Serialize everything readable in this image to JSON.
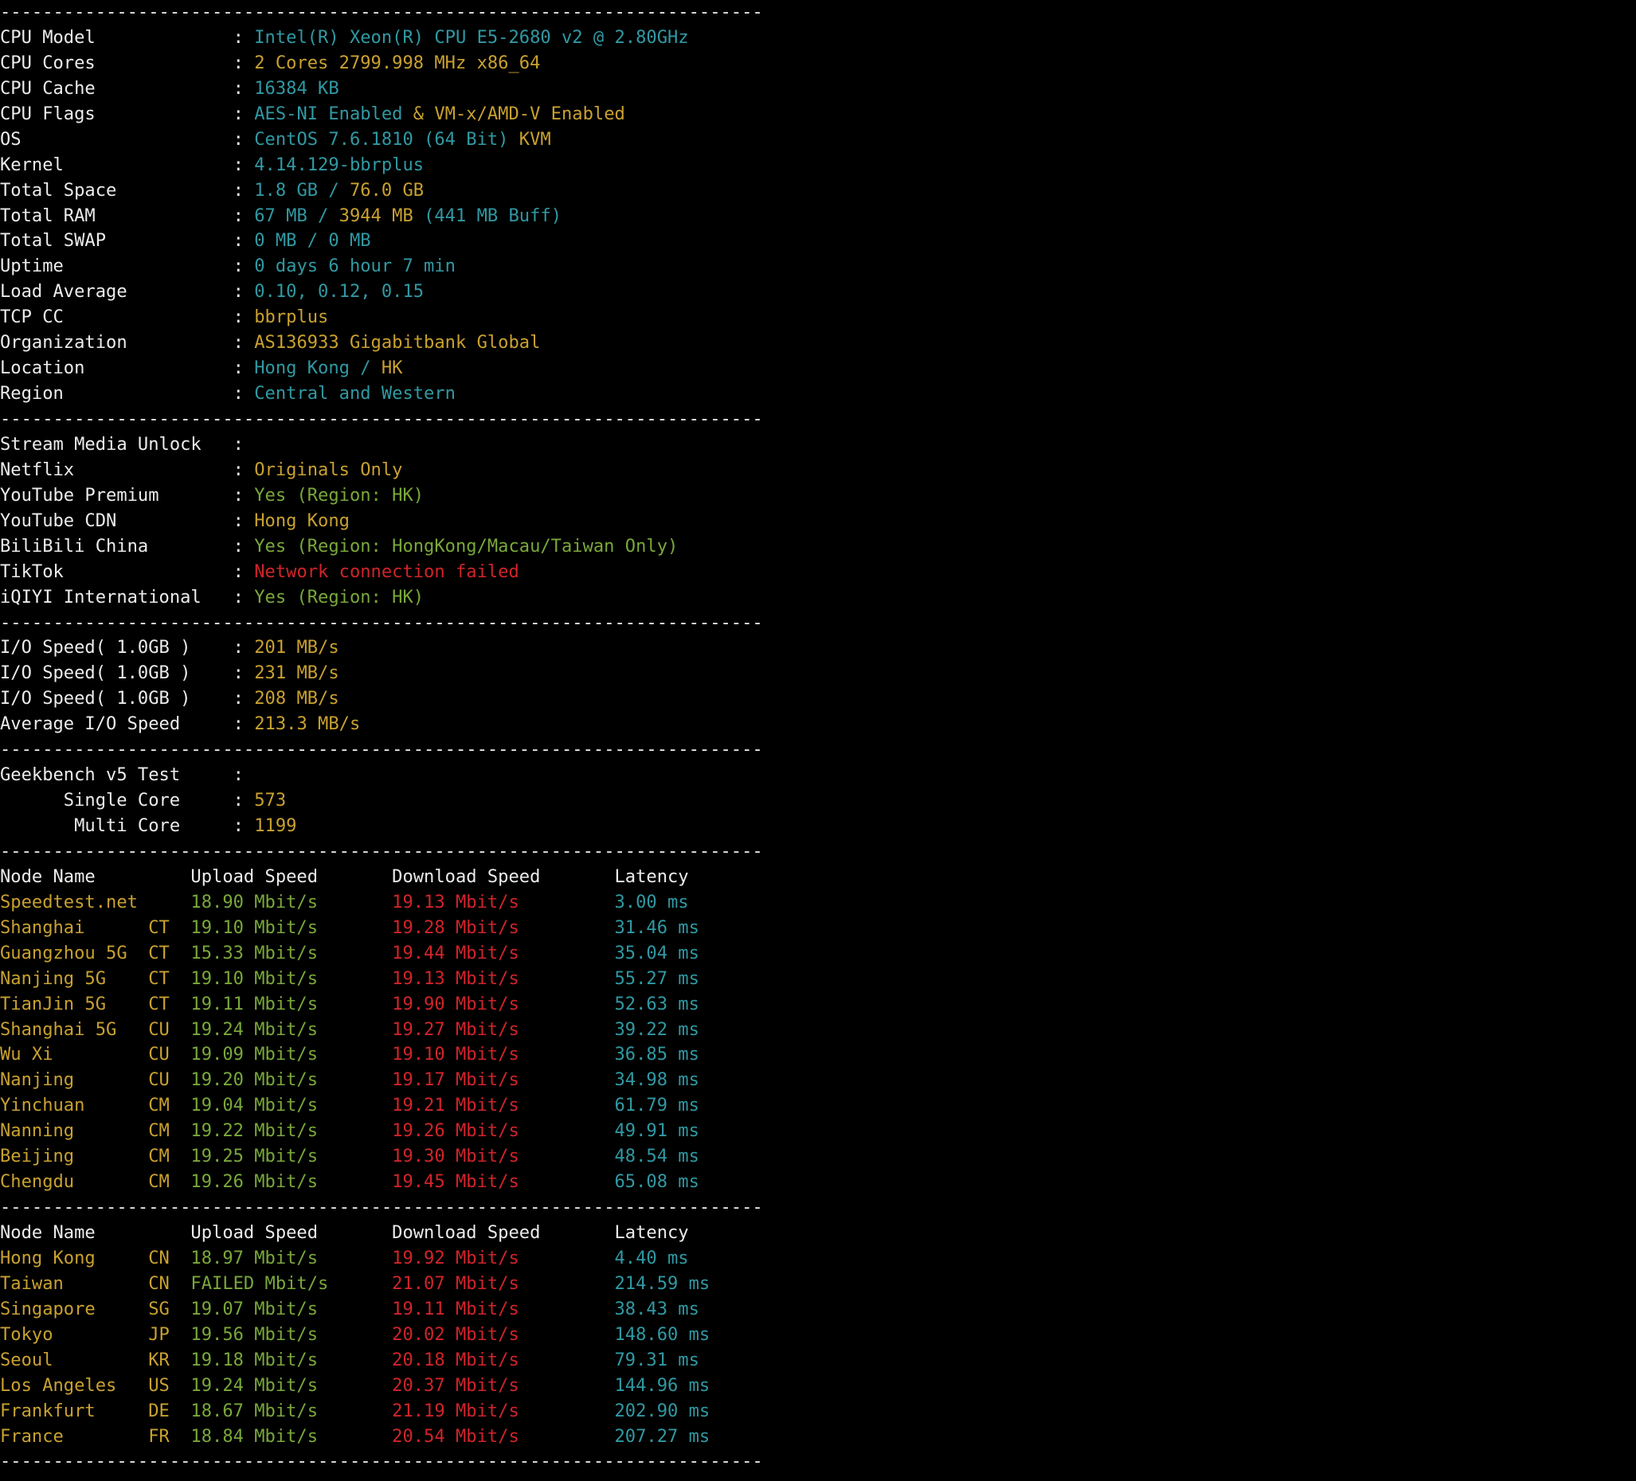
{
  "separator": "------------------------------------------------------------------------",
  "colon": ":",
  "system_info": [
    {
      "key": "CPU Model",
      "value": [
        {
          "text": "Intel(R) Xeon(R) CPU E5-2680 v2 @ 2.80GHz",
          "color": "#3099a3"
        }
      ]
    },
    {
      "key": "CPU Cores",
      "value": [
        {
          "text": "2 Cores 2799.998 MHz x86_64",
          "color": "#c9a130"
        }
      ]
    },
    {
      "key": "CPU Cache",
      "value": [
        {
          "text": "16384 KB",
          "color": "#3099a3"
        }
      ]
    },
    {
      "key": "CPU Flags",
      "value": [
        {
          "text": "AES-NI Enabled",
          "color": "#3099a3"
        },
        {
          "text": "& VM-x/AMD-V Enabled",
          "color": "#c9a130"
        }
      ]
    },
    {
      "key": "OS",
      "value": [
        {
          "text": "CentOS 7.6.1810 (64 Bit)",
          "color": "#3099a3"
        },
        {
          "text": "KVM",
          "color": "#c9a130"
        }
      ]
    },
    {
      "key": "Kernel",
      "value": [
        {
          "text": "4.14.129-bbrplus",
          "color": "#3099a3"
        }
      ]
    },
    {
      "key": "Total Space",
      "value": [
        {
          "text": "1.8 GB /",
          "color": "#3099a3"
        },
        {
          "text": "76.0 GB",
          "color": "#c9a130"
        }
      ]
    },
    {
      "key": "Total RAM",
      "value": [
        {
          "text": "67 MB /",
          "color": "#3099a3"
        },
        {
          "text": "3944 MB",
          "color": "#c9a130"
        },
        {
          "text": "(441 MB Buff)",
          "color": "#3099a3"
        }
      ]
    },
    {
      "key": "Total SWAP",
      "value": [
        {
          "text": "0 MB / 0 MB",
          "color": "#3099a3"
        }
      ]
    },
    {
      "key": "Uptime",
      "value": [
        {
          "text": "0 days 6 hour 7 min",
          "color": "#3099a3"
        }
      ]
    },
    {
      "key": "Load Average",
      "value": [
        {
          "text": "0.10, 0.12, 0.15",
          "color": "#3099a3"
        }
      ]
    },
    {
      "key": "TCP CC",
      "value": [
        {
          "text": "bbrplus",
          "color": "#c9a130"
        }
      ]
    },
    {
      "key": "Organization",
      "value": [
        {
          "text": "AS136933 Gigabitbank Global",
          "color": "#c9a130"
        }
      ]
    },
    {
      "key": "Location",
      "value": [
        {
          "text": "Hong Kong /",
          "color": "#3099a3"
        },
        {
          "text": "HK",
          "color": "#c9a130"
        }
      ]
    },
    {
      "key": "Region",
      "value": [
        {
          "text": "Central and Western",
          "color": "#3099a3"
        }
      ]
    }
  ],
  "stream_media": {
    "title": "Stream Media Unlock",
    "rows": [
      {
        "key": "Netflix",
        "value": [
          {
            "text": "Originals Only",
            "color": "#c9a130"
          }
        ]
      },
      {
        "key": "YouTube Premium",
        "value": [
          {
            "text": "Yes (Region: HK)",
            "color": "#7aa83a"
          }
        ]
      },
      {
        "key": "YouTube CDN",
        "value": [
          {
            "text": "Hong Kong",
            "color": "#c9a130"
          }
        ]
      },
      {
        "key": "BiliBili China",
        "value": [
          {
            "text": "Yes (Region: HongKong/Macau/Taiwan Only)",
            "color": "#7aa83a"
          }
        ]
      },
      {
        "key": "TikTok",
        "value": [
          {
            "text": "Network connection failed",
            "color": "#d0242a"
          }
        ]
      },
      {
        "key": "iQIYI International",
        "value": [
          {
            "text": "Yes (Region: HK)",
            "color": "#7aa83a"
          }
        ]
      }
    ]
  },
  "io": [
    {
      "key": "I/O Speed( 1.0GB )",
      "value": [
        {
          "text": "201 MB/s",
          "color": "#c9a130"
        }
      ]
    },
    {
      "key": "I/O Speed( 1.0GB )",
      "value": [
        {
          "text": "231 MB/s",
          "color": "#c9a130"
        }
      ]
    },
    {
      "key": "I/O Speed( 1.0GB )",
      "value": [
        {
          "text": "208 MB/s",
          "color": "#c9a130"
        }
      ]
    },
    {
      "key": "Average I/O Speed",
      "value": [
        {
          "text": "213.3 MB/s",
          "color": "#c9a130"
        }
      ]
    }
  ],
  "geekbench": {
    "title": "Geekbench v5 Test",
    "rows": [
      {
        "key": "Single Core",
        "value": [
          {
            "text": "573",
            "color": "#c9a130"
          }
        ]
      },
      {
        "key": "Multi Core",
        "value": [
          {
            "text": "1199",
            "color": "#c9a130"
          }
        ]
      }
    ]
  },
  "speed_colors": {
    "header": "#ececec",
    "node": "#c9a130",
    "isp": "#c9a130",
    "upload": "#7aa83a",
    "download": "#d0242a",
    "latency": "#3099a3"
  },
  "speedtests": [
    {
      "header": [
        "Node Name",
        "Upload Speed",
        "Download Speed",
        "Latency"
      ],
      "rows": [
        {
          "node": "Speedtest.net",
          "upload": "18.90 Mbit/s",
          "download": "19.13 Mbit/s",
          "latency": "3.00 ms"
        },
        {
          "node": "Shanghai",
          "isp": "CT",
          "upload": "19.10 Mbit/s",
          "download": "19.28 Mbit/s",
          "latency": "31.46 ms"
        },
        {
          "node": "Guangzhou 5G",
          "isp": "CT",
          "upload": "15.33 Mbit/s",
          "download": "19.44 Mbit/s",
          "latency": "35.04 ms"
        },
        {
          "node": "Nanjing 5G",
          "isp": "CT",
          "upload": "19.10 Mbit/s",
          "download": "19.13 Mbit/s",
          "latency": "55.27 ms"
        },
        {
          "node": "TianJin 5G",
          "isp": "CT",
          "upload": "19.11 Mbit/s",
          "download": "19.90 Mbit/s",
          "latency": "52.63 ms"
        },
        {
          "node": "Shanghai 5G",
          "isp": "CU",
          "upload": "19.24 Mbit/s",
          "download": "19.27 Mbit/s",
          "latency": "39.22 ms"
        },
        {
          "node": "Wu Xi",
          "isp": "CU",
          "upload": "19.09 Mbit/s",
          "download": "19.10 Mbit/s",
          "latency": "36.85 ms"
        },
        {
          "node": "Nanjing",
          "isp": "CU",
          "upload": "19.20 Mbit/s",
          "download": "19.17 Mbit/s",
          "latency": "34.98 ms"
        },
        {
          "node": "Yinchuan",
          "isp": "CM",
          "upload": "19.04 Mbit/s",
          "download": "19.21 Mbit/s",
          "latency": "61.79 ms"
        },
        {
          "node": "Nanning",
          "isp": "CM",
          "upload": "19.22 Mbit/s",
          "download": "19.26 Mbit/s",
          "latency": "49.91 ms"
        },
        {
          "node": "Beijing",
          "isp": "CM",
          "upload": "19.25 Mbit/s",
          "download": "19.30 Mbit/s",
          "latency": "48.54 ms"
        },
        {
          "node": "Chengdu",
          "isp": "CM",
          "upload": "19.26 Mbit/s",
          "download": "19.45 Mbit/s",
          "latency": "65.08 ms"
        }
      ]
    },
    {
      "header": [
        "Node Name",
        "Upload Speed",
        "Download Speed",
        "Latency"
      ],
      "rows": [
        {
          "node": "Hong Kong",
          "isp": "CN",
          "upload": "18.97 Mbit/s",
          "download": "19.92 Mbit/s",
          "latency": "4.40 ms"
        },
        {
          "node": "Taiwan",
          "isp": "CN",
          "upload": "FAILED Mbit/s",
          "download": "21.07 Mbit/s",
          "latency": "214.59 ms"
        },
        {
          "node": "Singapore",
          "isp": "SG",
          "upload": "19.07 Mbit/s",
          "download": "19.11 Mbit/s",
          "latency": "38.43 ms"
        },
        {
          "node": "Tokyo",
          "isp": "JP",
          "upload": "19.56 Mbit/s",
          "download": "20.02 Mbit/s",
          "latency": "148.60 ms"
        },
        {
          "node": "Seoul",
          "isp": "KR",
          "upload": "19.18 Mbit/s",
          "download": "20.18 Mbit/s",
          "latency": "79.31 ms"
        },
        {
          "node": "Los Angeles",
          "isp": "US",
          "upload": "19.24 Mbit/s",
          "download": "20.37 Mbit/s",
          "latency": "144.96 ms"
        },
        {
          "node": "Frankfurt",
          "isp": "DE",
          "upload": "18.67 Mbit/s",
          "download": "21.19 Mbit/s",
          "latency": "202.90 ms"
        },
        {
          "node": "France",
          "isp": "FR",
          "upload": "18.84 Mbit/s",
          "download": "20.54 Mbit/s",
          "latency": "207.27 ms"
        }
      ]
    }
  ]
}
